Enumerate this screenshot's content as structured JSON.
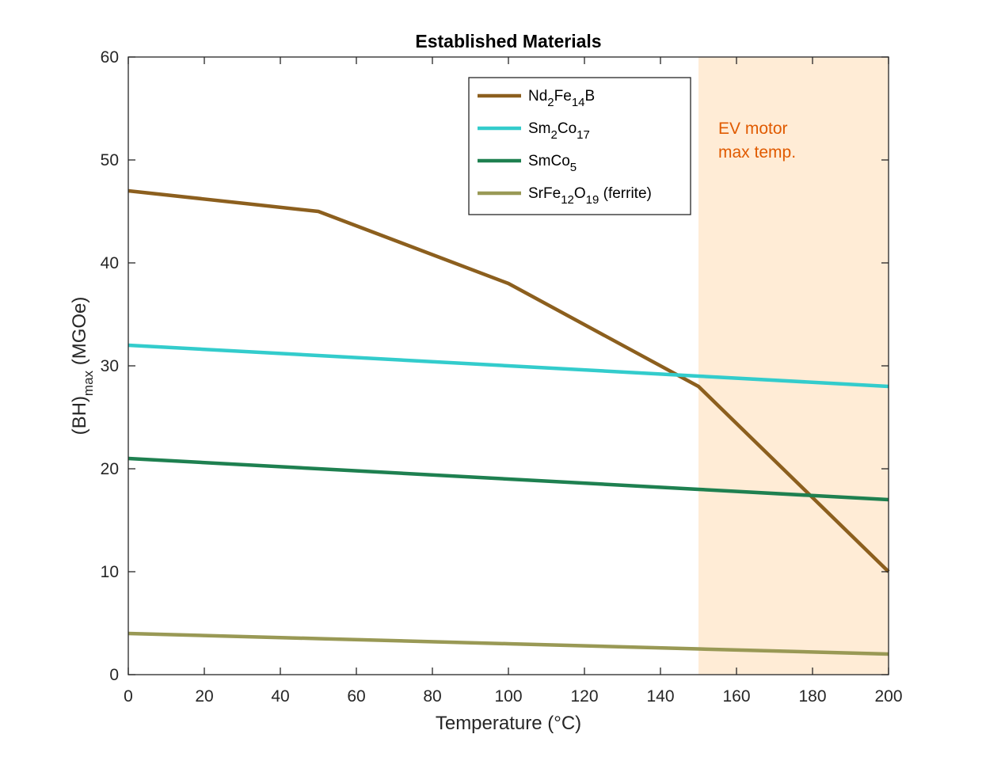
{
  "chart_data": {
    "type": "line",
    "title": "Established Materials",
    "xlabel": "Temperature (°C)",
    "ylabel": {
      "base": "(BH)",
      "sub": "max",
      "rest": " (MGOe)"
    },
    "xlim": [
      0,
      200
    ],
    "ylim": [
      0,
      60
    ],
    "xticks": [
      0,
      20,
      40,
      60,
      80,
      100,
      120,
      140,
      160,
      180,
      200
    ],
    "yticks": [
      0,
      10,
      20,
      30,
      40,
      50,
      60
    ],
    "grid": false,
    "legend_position": "top-center",
    "series": [
      {
        "name": "Nd2Fe14B",
        "label_parts": [
          [
            "Nd",
            ""
          ],
          [
            "2",
            "sub"
          ],
          [
            "Fe",
            ""
          ],
          [
            "14",
            "sub"
          ],
          [
            "B",
            ""
          ]
        ],
        "color": "#8c5f1e",
        "x": [
          0,
          50,
          100,
          150,
          200
        ],
        "y": [
          47,
          45,
          38,
          28,
          10
        ]
      },
      {
        "name": "Sm2Co17",
        "label_parts": [
          [
            "Sm",
            ""
          ],
          [
            "2",
            "sub"
          ],
          [
            "Co",
            ""
          ],
          [
            "17",
            "sub"
          ]
        ],
        "color": "#33cccc",
        "x": [
          0,
          50,
          100,
          150,
          200
        ],
        "y": [
          32,
          31,
          30,
          29,
          28
        ]
      },
      {
        "name": "SmCo5",
        "label_parts": [
          [
            "SmCo",
            ""
          ],
          [
            "5",
            "sub"
          ]
        ],
        "color": "#1e8050",
        "x": [
          0,
          50,
          100,
          150,
          200
        ],
        "y": [
          21,
          20,
          19,
          18,
          17
        ]
      },
      {
        "name": "SrFe12O19 (ferrite)",
        "label_parts": [
          [
            "SrFe",
            ""
          ],
          [
            "12",
            "sub"
          ],
          [
            "O",
            ""
          ],
          [
            "19",
            "sub"
          ],
          [
            " (ferrite)",
            ""
          ]
        ],
        "color": "#999955",
        "x": [
          0,
          50,
          100,
          150,
          200
        ],
        "y": [
          4,
          3.5,
          3,
          2.5,
          2
        ]
      }
    ],
    "shaded_region": {
      "x_range": [
        150,
        200
      ],
      "color": "#ffe6c8",
      "label": [
        "EV motor",
        "max temp."
      ],
      "label_color": "#e05a00"
    }
  }
}
